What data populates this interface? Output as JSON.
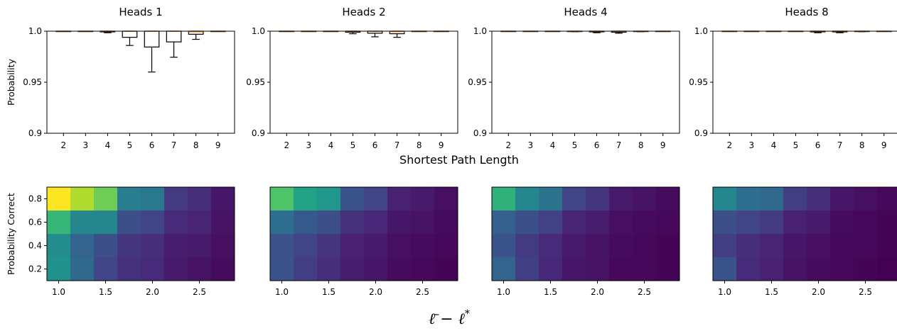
{
  "figure": {
    "top_xlabel": "Shortest Path Length",
    "top_ylabel": "Probability",
    "bottom_ylabel": "Probability Correct",
    "bottom_xlabel_parts": {
      "lbar": "ℓ̄",
      "minus": " − ",
      "lstar": "ℓ",
      "star": "*"
    }
  },
  "chart_data": [
    {
      "type": "box",
      "title": "Heads 1",
      "xlabel": "Shortest Path Length",
      "ylabel": "Probability",
      "categories": [
        "2",
        "3",
        "4",
        "5",
        "6",
        "7",
        "8",
        "9"
      ],
      "ylim": [
        0.9,
        1.0
      ],
      "yticks": [
        "0.9",
        "0.95",
        "1.0"
      ],
      "boxes": [
        {
          "low": 1.0,
          "q1": 1.0,
          "med": 1.0,
          "q3": 1.0,
          "high": 1.0
        },
        {
          "low": 1.0,
          "q1": 1.0,
          "med": 1.0,
          "q3": 1.0,
          "high": 1.0
        },
        {
          "low": 0.9985,
          "q1": 0.9993,
          "med": 1.0,
          "q3": 1.0,
          "high": 1.0
        },
        {
          "low": 0.986,
          "q1": 0.994,
          "med": 1.0,
          "q3": 1.0,
          "high": 1.0
        },
        {
          "low": 0.96,
          "q1": 0.9845,
          "med": 1.0,
          "q3": 1.0,
          "high": 1.0
        },
        {
          "low": 0.9745,
          "q1": 0.9895,
          "med": 1.0,
          "q3": 1.0,
          "high": 1.0
        },
        {
          "low": 0.992,
          "q1": 0.997,
          "med": 0.9995,
          "q3": 1.0,
          "high": 1.0
        },
        {
          "low": 1.0,
          "q1": 1.0,
          "med": 1.0,
          "q3": 1.0,
          "high": 1.0
        }
      ]
    },
    {
      "type": "box",
      "title": "Heads 2",
      "xlabel": "Shortest Path Length",
      "ylabel": "",
      "categories": [
        "2",
        "3",
        "4",
        "5",
        "6",
        "7",
        "8",
        "9"
      ],
      "ylim": [
        0.9,
        1.0
      ],
      "yticks": [
        "0.9",
        "0.95",
        "1.0"
      ],
      "boxes": [
        {
          "low": 1.0,
          "q1": 1.0,
          "med": 1.0,
          "q3": 1.0,
          "high": 1.0
        },
        {
          "low": 1.0,
          "q1": 1.0,
          "med": 1.0,
          "q3": 1.0,
          "high": 1.0
        },
        {
          "low": 1.0,
          "q1": 1.0,
          "med": 1.0,
          "q3": 1.0,
          "high": 1.0
        },
        {
          "low": 0.9975,
          "q1": 0.999,
          "med": 1.0,
          "q3": 1.0,
          "high": 1.0
        },
        {
          "low": 0.9945,
          "q1": 0.998,
          "med": 1.0,
          "q3": 1.0,
          "high": 1.0
        },
        {
          "low": 0.994,
          "q1": 0.9975,
          "med": 0.9995,
          "q3": 1.0,
          "high": 1.0
        },
        {
          "low": 1.0,
          "q1": 1.0,
          "med": 1.0,
          "q3": 1.0,
          "high": 1.0
        },
        {
          "low": 1.0,
          "q1": 1.0,
          "med": 1.0,
          "q3": 1.0,
          "high": 1.0
        }
      ]
    },
    {
      "type": "box",
      "title": "Heads 4",
      "xlabel": "Shortest Path Length",
      "ylabel": "",
      "categories": [
        "2",
        "3",
        "4",
        "5",
        "6",
        "7",
        "8",
        "9"
      ],
      "ylim": [
        0.9,
        1.0
      ],
      "yticks": [
        "0.9",
        "0.95",
        "1.0"
      ],
      "boxes": [
        {
          "low": 1.0,
          "q1": 1.0,
          "med": 1.0,
          "q3": 1.0,
          "high": 1.0
        },
        {
          "low": 1.0,
          "q1": 1.0,
          "med": 1.0,
          "q3": 1.0,
          "high": 1.0
        },
        {
          "low": 1.0,
          "q1": 1.0,
          "med": 1.0,
          "q3": 1.0,
          "high": 1.0
        },
        {
          "low": 0.9995,
          "q1": 0.9998,
          "med": 1.0,
          "q3": 1.0,
          "high": 1.0
        },
        {
          "low": 0.9985,
          "q1": 0.9993,
          "med": 1.0,
          "q3": 1.0,
          "high": 1.0
        },
        {
          "low": 0.998,
          "q1": 0.999,
          "med": 1.0,
          "q3": 1.0,
          "high": 1.0
        },
        {
          "low": 0.9995,
          "q1": 0.9998,
          "med": 1.0,
          "q3": 1.0,
          "high": 1.0
        },
        {
          "low": 1.0,
          "q1": 1.0,
          "med": 1.0,
          "q3": 1.0,
          "high": 1.0
        }
      ]
    },
    {
      "type": "box",
      "title": "Heads 8",
      "xlabel": "Shortest Path Length",
      "ylabel": "",
      "categories": [
        "2",
        "3",
        "4",
        "5",
        "6",
        "7",
        "8",
        "9"
      ],
      "ylim": [
        0.9,
        1.0
      ],
      "yticks": [
        "0.9",
        "0.95",
        "1.0"
      ],
      "boxes": [
        {
          "low": 1.0,
          "q1": 1.0,
          "med": 1.0,
          "q3": 1.0,
          "high": 1.0
        },
        {
          "low": 1.0,
          "q1": 1.0,
          "med": 1.0,
          "q3": 1.0,
          "high": 1.0
        },
        {
          "low": 1.0,
          "q1": 1.0,
          "med": 1.0,
          "q3": 1.0,
          "high": 1.0
        },
        {
          "low": 1.0,
          "q1": 1.0,
          "med": 1.0,
          "q3": 1.0,
          "high": 1.0
        },
        {
          "low": 0.9985,
          "q1": 0.9993,
          "med": 1.0,
          "q3": 1.0,
          "high": 1.0
        },
        {
          "low": 0.9985,
          "q1": 0.9993,
          "med": 1.0,
          "q3": 1.0,
          "high": 1.0
        },
        {
          "low": 0.9995,
          "q1": 0.9998,
          "med": 1.0,
          "q3": 1.0,
          "high": 1.0
        },
        {
          "low": 1.0,
          "q1": 1.0,
          "med": 1.0,
          "q3": 1.0,
          "high": 1.0
        }
      ]
    },
    {
      "type": "heatmap",
      "ylabel": "Probability Correct",
      "xlim": [
        0.875,
        2.875
      ],
      "ylim": [
        0.1,
        0.9
      ],
      "xticks": [
        1.0,
        1.5,
        2.0,
        2.5
      ],
      "xtick_labels": [
        "1.0",
        "1.5",
        "2.0",
        "2.5"
      ],
      "yticks": [
        0.2,
        0.4,
        0.6,
        0.8
      ],
      "ytick_labels": [
        "0.2",
        "0.4",
        "0.6",
        "0.8"
      ],
      "x_edges": [
        0.875,
        1.125,
        1.375,
        1.625,
        1.875,
        2.125,
        2.375,
        2.625,
        2.875
      ],
      "y_edges": [
        0.1,
        0.3,
        0.5,
        0.7,
        0.9
      ],
      "colormap": "viridis",
      "values_top_to_bottom": [
        [
          1.0,
          0.88,
          0.78,
          0.42,
          0.4,
          0.17,
          0.13,
          0.06
        ],
        [
          0.66,
          0.46,
          0.46,
          0.24,
          0.2,
          0.12,
          0.1,
          0.05
        ],
        [
          0.48,
          0.32,
          0.24,
          0.16,
          0.13,
          0.08,
          0.07,
          0.04
        ],
        [
          0.5,
          0.34,
          0.2,
          0.14,
          0.12,
          0.07,
          0.05,
          0.03
        ]
      ]
    },
    {
      "type": "heatmap",
      "ylabel": "",
      "xlim": [
        0.875,
        2.875
      ],
      "ylim": [
        0.1,
        0.9
      ],
      "xticks": [
        1.0,
        1.5,
        2.0,
        2.5
      ],
      "xtick_labels": [
        "1.0",
        "1.5",
        "2.0",
        "2.5"
      ],
      "x_edges": [
        0.875,
        1.125,
        1.375,
        1.625,
        1.875,
        2.125,
        2.375,
        2.625,
        2.875
      ],
      "y_edges": [
        0.1,
        0.3,
        0.5,
        0.7,
        0.9
      ],
      "colormap": "viridis",
      "values_top_to_bottom": [
        [
          0.72,
          0.58,
          0.52,
          0.26,
          0.2,
          0.09,
          0.07,
          0.04
        ],
        [
          0.36,
          0.28,
          0.24,
          0.14,
          0.11,
          0.06,
          0.05,
          0.03
        ],
        [
          0.25,
          0.2,
          0.15,
          0.09,
          0.07,
          0.04,
          0.03,
          0.02
        ],
        [
          0.26,
          0.18,
          0.13,
          0.08,
          0.06,
          0.03,
          0.02,
          0.01
        ]
      ]
    },
    {
      "type": "heatmap",
      "ylabel": "",
      "xlim": [
        0.875,
        2.875
      ],
      "ylim": [
        0.1,
        0.9
      ],
      "xticks": [
        1.0,
        1.5,
        2.0,
        2.5
      ],
      "xtick_labels": [
        "1.0",
        "1.5",
        "2.0",
        "2.5"
      ],
      "x_edges": [
        0.875,
        1.125,
        1.375,
        1.625,
        1.875,
        2.125,
        2.375,
        2.625,
        2.875
      ],
      "y_edges": [
        0.1,
        0.3,
        0.5,
        0.7,
        0.9
      ],
      "colormap": "viridis",
      "values_top_to_bottom": [
        [
          0.64,
          0.46,
          0.38,
          0.2,
          0.16,
          0.07,
          0.05,
          0.03
        ],
        [
          0.3,
          0.24,
          0.19,
          0.1,
          0.08,
          0.04,
          0.03,
          0.02
        ],
        [
          0.26,
          0.17,
          0.12,
          0.07,
          0.05,
          0.03,
          0.02,
          0.01
        ],
        [
          0.32,
          0.18,
          0.11,
          0.06,
          0.05,
          0.02,
          0.02,
          0.01
        ]
      ]
    },
    {
      "type": "heatmap",
      "ylabel": "",
      "xlim": [
        0.875,
        2.875
      ],
      "ylim": [
        0.1,
        0.9
      ],
      "xticks": [
        1.0,
        1.5,
        2.0,
        2.5
      ],
      "xtick_labels": [
        "1.0",
        "1.5",
        "2.0",
        "2.5"
      ],
      "x_edges": [
        0.875,
        1.125,
        1.375,
        1.625,
        1.875,
        2.125,
        2.375,
        2.625,
        2.875
      ],
      "y_edges": [
        0.1,
        0.3,
        0.5,
        0.7,
        0.9
      ],
      "colormap": "viridis",
      "values_top_to_bottom": [
        [
          0.46,
          0.36,
          0.34,
          0.18,
          0.13,
          0.06,
          0.04,
          0.02
        ],
        [
          0.24,
          0.2,
          0.17,
          0.09,
          0.07,
          0.03,
          0.02,
          0.01
        ],
        [
          0.18,
          0.13,
          0.1,
          0.06,
          0.04,
          0.02,
          0.02,
          0.01
        ],
        [
          0.26,
          0.12,
          0.09,
          0.05,
          0.03,
          0.02,
          0.01,
          0.0
        ]
      ]
    }
  ]
}
